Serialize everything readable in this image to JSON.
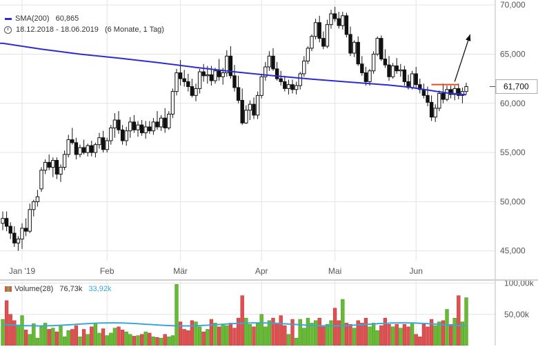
{
  "chart_data": [
    {
      "type": "candlestick",
      "legend": {
        "sma_label": "SMA(200)",
        "sma_value": "60,865",
        "date_range": "18.12.2018 - 18.06.2019",
        "period": "(6 Monate, 1 Tag)"
      },
      "last_price_label": "61,700",
      "last_price": 61700,
      "ylim": [
        44000,
        70500
      ],
      "yticks": [
        45000,
        50000,
        55000,
        60000,
        65000,
        70000
      ],
      "ytick_labels": [
        "45,000",
        "50,000",
        "55,000",
        "60,000",
        "65,000",
        "70,000"
      ],
      "xticks": [
        {
          "label": "Jan '19",
          "index": 5
        },
        {
          "label": "Feb",
          "index": 27
        },
        {
          "label": "Mär",
          "index": 46
        },
        {
          "label": "Apr",
          "index": 67
        },
        {
          "label": "Mai",
          "index": 86
        },
        {
          "label": "Jun",
          "index": 107
        }
      ],
      "grid": true,
      "colors": {
        "sma": "#2b2bd0",
        "resistance": "#e64a19",
        "candle_up": "#ffffff",
        "candle_down": "#111111",
        "arrow": "#111111",
        "grid": "#e3e3e3"
      },
      "resistance_level": 61900,
      "resistance_from_index": 111,
      "resistance_to_index": 118,
      "arrow": {
        "from_index": 117,
        "from_value": 62200,
        "to_index": 121,
        "to_value": 67000
      },
      "candles": [
        [
          47800,
          49000,
          47100,
          48300
        ],
        [
          48300,
          49000,
          47000,
          47500
        ],
        [
          47500,
          47900,
          46200,
          46800
        ],
        [
          46800,
          47500,
          45400,
          45800
        ],
        [
          45800,
          46500,
          45000,
          46200
        ],
        [
          46200,
          47800,
          45200,
          47300
        ],
        [
          47300,
          48300,
          46500,
          47000
        ],
        [
          47000,
          49800,
          46800,
          49200
        ],
        [
          49200,
          50200,
          48500,
          50000
        ],
        [
          50000,
          51200,
          49500,
          50500
        ],
        [
          51300,
          53500,
          51000,
          53200
        ],
        [
          53200,
          54300,
          52800,
          54000
        ],
        [
          54000,
          54800,
          53200,
          53500
        ],
        [
          53500,
          54500,
          52500,
          54200
        ],
        [
          54200,
          54500,
          52300,
          52800
        ],
        [
          52800,
          53800,
          52000,
          53500
        ],
        [
          53500,
          55200,
          53200,
          54800
        ],
        [
          54800,
          56800,
          54500,
          56300
        ],
        [
          56300,
          57500,
          55800,
          56000
        ],
        [
          56000,
          56500,
          54300,
          54800
        ],
        [
          54800,
          55800,
          54500,
          55500
        ],
        [
          55500,
          56300,
          54800,
          55000
        ],
        [
          55000,
          55900,
          54600,
          55700
        ],
        [
          55700,
          56200,
          54600,
          55000
        ],
        [
          55000,
          56000,
          54500,
          55800
        ],
        [
          55800,
          57000,
          55400,
          56500
        ],
        [
          56500,
          57200,
          55000,
          55300
        ],
        [
          55300,
          56500,
          55000,
          56200
        ],
        [
          56200,
          57800,
          55800,
          57500
        ],
        [
          57500,
          59000,
          56500,
          58300
        ],
        [
          58300,
          59200,
          56900,
          57300
        ],
        [
          57300,
          57800,
          55800,
          56200
        ],
        [
          56200,
          57600,
          55700,
          57200
        ],
        [
          57200,
          58600,
          56500,
          58100
        ],
        [
          58100,
          58800,
          57000,
          57300
        ],
        [
          57300,
          58200,
          56600,
          57800
        ],
        [
          57800,
          58300,
          56700,
          57000
        ],
        [
          57000,
          58200,
          56400,
          57600
        ],
        [
          57600,
          58200,
          56900,
          57200
        ],
        [
          57200,
          58500,
          56800,
          58100
        ],
        [
          58100,
          59200,
          57300,
          57600
        ],
        [
          57600,
          58800,
          57200,
          58500
        ],
        [
          58500,
          59500,
          57000,
          57500
        ],
        [
          57500,
          59200,
          57300,
          58900
        ],
        [
          58900,
          61500,
          58500,
          61200
        ],
        [
          61200,
          63500,
          60800,
          63100
        ],
        [
          63100,
          64400,
          61800,
          62500
        ],
        [
          62500,
          63400,
          61700,
          62200
        ],
        [
          62200,
          63000,
          61200,
          61700
        ],
        [
          61700,
          62500,
          60600,
          60800
        ],
        [
          60800,
          62000,
          60200,
          61500
        ],
        [
          61500,
          63500,
          61000,
          63200
        ],
        [
          63200,
          64000,
          62200,
          62800
        ],
        [
          62800,
          63800,
          62000,
          62900
        ],
        [
          62900,
          63800,
          61800,
          62300
        ],
        [
          62300,
          63600,
          62000,
          63300
        ],
        [
          63300,
          64500,
          62300,
          62700
        ],
        [
          62700,
          63600,
          61900,
          63100
        ],
        [
          63100,
          65400,
          62700,
          64800
        ],
        [
          64800,
          65800,
          62500,
          62800
        ],
        [
          62800,
          63900,
          61200,
          61600
        ],
        [
          61600,
          62800,
          60000,
          60300
        ],
        [
          60300,
          61500,
          57800,
          58000
        ],
        [
          58000,
          59800,
          57900,
          59300
        ],
        [
          59300,
          60300,
          58300,
          59900
        ],
        [
          59900,
          60600,
          58400,
          58800
        ],
        [
          58800,
          61200,
          58400,
          60800
        ],
        [
          60800,
          63000,
          60500,
          62700
        ],
        [
          62700,
          64200,
          62300,
          63700
        ],
        [
          63700,
          65300,
          63300,
          64800
        ],
        [
          64800,
          65600,
          63300,
          63500
        ],
        [
          63500,
          64200,
          62300,
          62500
        ],
        [
          62500,
          63300,
          61800,
          62200
        ],
        [
          62200,
          62800,
          61200,
          61500
        ],
        [
          61500,
          62400,
          60900,
          61900
        ],
        [
          61900,
          62400,
          61000,
          61400
        ],
        [
          61400,
          62200,
          60900,
          61800
        ],
        [
          61800,
          63200,
          61400,
          63000
        ],
        [
          63000,
          64800,
          62700,
          64300
        ],
        [
          64300,
          65800,
          64000,
          65600
        ],
        [
          65600,
          67000,
          65300,
          66800
        ],
        [
          66800,
          68600,
          66500,
          68200
        ],
        [
          68200,
          68900,
          66200,
          66600
        ],
        [
          66600,
          67300,
          65500,
          65800
        ],
        [
          65800,
          68500,
          65600,
          68000
        ],
        [
          68000,
          69500,
          67600,
          69100
        ],
        [
          69100,
          69800,
          68300,
          68600
        ],
        [
          68600,
          69300,
          67600,
          67900
        ],
        [
          67900,
          69300,
          67500,
          68900
        ],
        [
          68900,
          69200,
          66700,
          67000
        ],
        [
          67000,
          67800,
          64800,
          65100
        ],
        [
          65100,
          66400,
          64700,
          66200
        ],
        [
          66200,
          66800,
          63800,
          64000
        ],
        [
          64000,
          64800,
          62800,
          63100
        ],
        [
          63100,
          63700,
          61800,
          62200
        ],
        [
          62200,
          63500,
          61800,
          63300
        ],
        [
          63300,
          65300,
          63000,
          65000
        ],
        [
          65000,
          66800,
          64800,
          66600
        ],
        [
          66600,
          66900,
          64300,
          64500
        ],
        [
          64500,
          65500,
          63600,
          63900
        ],
        [
          63900,
          64800,
          62300,
          62700
        ],
        [
          62700,
          64100,
          62500,
          63800
        ],
        [
          63800,
          64600,
          63000,
          63300
        ],
        [
          63300,
          64000,
          62700,
          63400
        ],
        [
          63400,
          63800,
          61800,
          62200
        ],
        [
          62200,
          62900,
          61400,
          61600
        ],
        [
          61600,
          63300,
          61400,
          63000
        ],
        [
          63000,
          63700,
          61600,
          61900
        ],
        [
          61900,
          62500,
          61000,
          61400
        ],
        [
          61400,
          62000,
          60500,
          60800
        ],
        [
          60800,
          61700,
          59700,
          60100
        ],
        [
          60100,
          60800,
          58200,
          58600
        ],
        [
          58600,
          59900,
          58100,
          59500
        ],
        [
          59500,
          61300,
          59200,
          61000
        ],
        [
          61000,
          62000,
          60000,
          60400
        ],
        [
          60400,
          61800,
          60200,
          61400
        ],
        [
          61400,
          61800,
          60500,
          60900
        ],
        [
          60900,
          61800,
          60300,
          61500
        ],
        [
          61500,
          62000,
          60400,
          60800
        ],
        [
          60800,
          61600,
          60000,
          61200
        ],
        [
          61200,
          62100,
          60900,
          61700
        ]
      ],
      "sma": [
        [
          0,
          66100
        ],
        [
          10,
          65500
        ],
        [
          20,
          65000
        ],
        [
          30,
          64600
        ],
        [
          40,
          64150
        ],
        [
          50,
          63650
        ],
        [
          60,
          63200
        ],
        [
          70,
          62800
        ],
        [
          80,
          62450
        ],
        [
          90,
          62150
        ],
        [
          100,
          61850
        ],
        [
          105,
          61650
        ],
        [
          110,
          61350
        ],
        [
          115,
          61050
        ],
        [
          120,
          60865
        ]
      ]
    },
    {
      "type": "bar",
      "legend": {
        "label": "Volume(28)",
        "value1": "76,73k",
        "value2": "33,92k"
      },
      "ylim": [
        0,
        105000
      ],
      "yticks": [
        50000,
        100000
      ],
      "ytick_labels": [
        "50,00k",
        "100,00k"
      ],
      "colors": {
        "up": "#66bb33",
        "down": "#e05050",
        "ma": "#3aa7d6"
      },
      "ma_value": 33920,
      "values": [
        42000,
        72000,
        50000,
        40000,
        33000,
        48000,
        25000,
        18000,
        35000,
        12000,
        30000,
        36000,
        26000,
        28000,
        22000,
        33000,
        14000,
        24000,
        26000,
        32000,
        14000,
        26000,
        18000,
        30000,
        36000,
        20000,
        27000,
        16000,
        20000,
        28000,
        30000,
        25000,
        22000,
        18000,
        15000,
        16000,
        18000,
        22000,
        20000,
        14000,
        13000,
        12000,
        18000,
        14000,
        16000,
        98000,
        38000,
        26000,
        24000,
        40000,
        38000,
        30000,
        22000,
        26000,
        42000,
        36000,
        30000,
        34000,
        32000,
        36000,
        28000,
        44000,
        80000,
        44000,
        34000,
        30000,
        35000,
        50000,
        30000,
        40000,
        44000,
        36000,
        48000,
        32000,
        18000,
        42000,
        12000,
        42000,
        28000,
        44000,
        36000,
        40000,
        44000,
        30000,
        34000,
        40000,
        60000,
        40000,
        74000,
        36000,
        34000,
        28000,
        40000,
        36000,
        44000,
        30000,
        36000,
        24000,
        32000,
        44000,
        34000,
        30000,
        34000,
        28000,
        34000,
        30000,
        36000,
        18000,
        14000,
        34000,
        30000,
        42000,
        32000,
        38000,
        40000,
        58000,
        34000,
        44000,
        80000,
        38000,
        76730
      ]
    }
  ]
}
